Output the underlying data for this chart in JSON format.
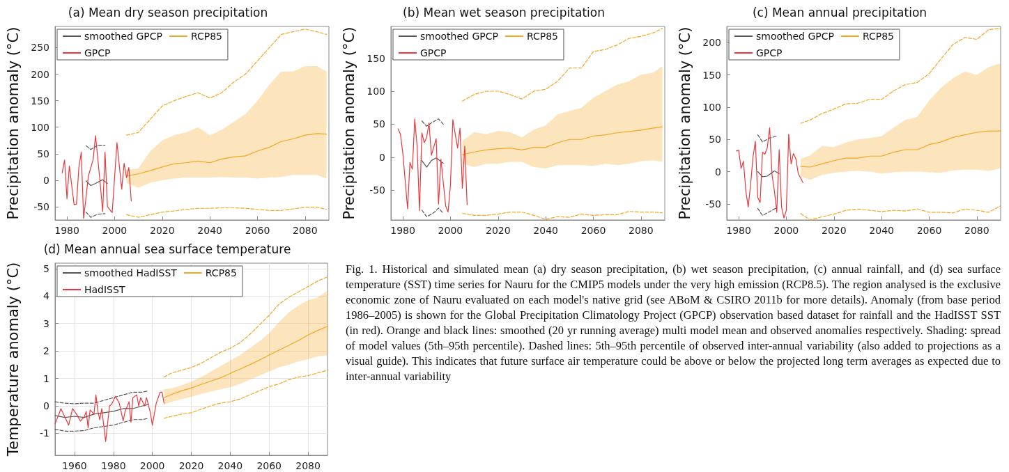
{
  "chart_data": [
    {
      "type": "line",
      "title": "(a) Mean dry season precipitation",
      "ylabel": "Precipitation anomaly (°C)",
      "xlim": [
        1975,
        2090
      ],
      "xticks": [
        1980,
        2000,
        2020,
        2040,
        2060,
        2080
      ],
      "ylim": [
        -75,
        290
      ],
      "yticks": [
        -50,
        0,
        50,
        100,
        150,
        200,
        250
      ],
      "grid": false,
      "legend": "top left",
      "series": [
        {
          "name": "smoothed GPCP",
          "color": "#555555",
          "x": [
            1988,
            1990,
            1992,
            1995,
            1997
          ],
          "values": [
            -1,
            -10,
            -6,
            1,
            -6
          ]
        },
        {
          "name": "RCP85",
          "color": "#f5a623",
          "x": [
            2005,
            2010,
            2015,
            2020,
            2025,
            2030,
            2035,
            2040,
            2045,
            2050,
            2055,
            2060,
            2065,
            2070,
            2075,
            2080,
            2085,
            2089
          ],
          "values": [
            8,
            12,
            18,
            25,
            31,
            33,
            36,
            33,
            40,
            44,
            46,
            55,
            62,
            73,
            78,
            85,
            88,
            87
          ],
          "lower": [
            -5,
            -14,
            -5,
            0,
            3,
            5,
            5,
            5,
            6,
            5,
            5,
            3,
            5,
            6,
            10,
            10,
            10,
            3
          ],
          "upper": [
            20,
            22,
            55,
            75,
            85,
            90,
            100,
            85,
            95,
            110,
            125,
            150,
            180,
            205,
            205,
            215,
            215,
            205
          ]
        },
        {
          "name": "GPCP",
          "color": "#e8383d",
          "x": [
            1978,
            1979,
            1980,
            1981,
            1983,
            1984,
            1985,
            1986,
            1987,
            1989,
            1991,
            1992,
            1994,
            1995,
            1996,
            1997,
            1999,
            2001,
            2003,
            2004,
            2005,
            2006,
            2007
          ],
          "values": [
            14,
            38,
            -35,
            27,
            -46,
            -45,
            24,
            53,
            -72,
            8,
            39,
            84,
            -8,
            -59,
            53,
            -50,
            -61,
            71,
            -17,
            32,
            5,
            24,
            -39
          ]
        },
        {
          "color": "#555555",
          "line_style": "dashed",
          "x": [
            1988,
            1990,
            1993,
            1996
          ],
          "values": [
            65,
            58,
            66,
            66
          ]
        },
        {
          "color": "#555555",
          "line_style": "dashed",
          "x": [
            1988,
            1990,
            1993,
            1996
          ],
          "values": [
            -60,
            -70,
            -64,
            -63
          ]
        },
        {
          "color": "#f5a623",
          "line_style": "dashed",
          "x": [
            2005,
            2010,
            2015,
            2020,
            2025,
            2030,
            2035,
            2040,
            2045,
            2050,
            2055,
            2060,
            2065,
            2070,
            2075,
            2080,
            2085,
            2089
          ],
          "values": [
            85,
            90,
            115,
            140,
            150,
            158,
            165,
            155,
            165,
            185,
            200,
            225,
            250,
            275,
            280,
            285,
            280,
            275
          ]
        },
        {
          "color": "#f5a623",
          "line_style": "dashed",
          "x": [
            2005,
            2010,
            2015,
            2020,
            2025,
            2030,
            2035,
            2040,
            2045,
            2050,
            2055,
            2060,
            2065,
            2070,
            2075,
            2080,
            2085,
            2089
          ],
          "values": [
            -65,
            -70,
            -65,
            -60,
            -58,
            -55,
            -53,
            -53,
            -52,
            -52,
            -53,
            -55,
            -57,
            -57,
            -54,
            -51,
            -51,
            -55
          ]
        }
      ]
    },
    {
      "type": "line",
      "title": "(b) Mean wet season precipitation",
      "ylabel": "Precipitation anomaly (°C)",
      "xlim": [
        1975,
        2090
      ],
      "xticks": [
        1980,
        2000,
        2020,
        2040,
        2060,
        2080
      ],
      "ylim": [
        -95,
        198
      ],
      "yticks": [
        -50,
        0,
        50,
        100,
        150
      ],
      "grid": false,
      "legend": "top left",
      "series": [
        {
          "name": "smoothed GPCP",
          "color": "#555555",
          "x": [
            1988,
            1990,
            1992,
            1994,
            1997
          ],
          "values": [
            -5,
            -15,
            -5,
            -1,
            -9
          ]
        },
        {
          "name": "RCP85",
          "color": "#f5a623",
          "x": [
            2005,
            2010,
            2015,
            2020,
            2025,
            2030,
            2035,
            2040,
            2045,
            2050,
            2055,
            2060,
            2065,
            2070,
            2075,
            2080,
            2085,
            2089
          ],
          "values": [
            4,
            8,
            11,
            13,
            14,
            11,
            15,
            15,
            22,
            27,
            27,
            32,
            34,
            37,
            39,
            41,
            44,
            46
          ],
          "lower": [
            -10,
            -15,
            -10,
            -10,
            -7,
            -7,
            -15,
            -17,
            -12,
            -12,
            -12,
            -13,
            -10,
            -12,
            -10,
            -6,
            -5,
            -7
          ],
          "upper": [
            25,
            38,
            35,
            40,
            38,
            30,
            42,
            48,
            65,
            70,
            75,
            90,
            100,
            110,
            115,
            125,
            128,
            138
          ]
        },
        {
          "name": "GPCP",
          "color": "#e8383d",
          "x": [
            1978,
            1979,
            1980,
            1982,
            1983,
            1984,
            1985,
            1986,
            1987,
            1988,
            1989,
            1990,
            1991,
            1992,
            1994,
            1995,
            1996,
            1998,
            1999,
            2000,
            2001,
            2003,
            2004,
            2005,
            2006,
            2007
          ],
          "values": [
            43,
            35,
            6,
            -78,
            -8,
            -18,
            58,
            17,
            -81,
            37,
            22,
            30,
            52,
            3,
            28,
            -71,
            -3,
            -74,
            -83,
            -42,
            57,
            14,
            44,
            -47,
            17,
            -72
          ]
        },
        {
          "color": "#555555",
          "line_style": "dashed",
          "x": [
            1988,
            1990,
            1992,
            1995,
            1997
          ],
          "values": [
            55,
            47,
            52,
            58,
            50
          ]
        },
        {
          "color": "#555555",
          "line_style": "dashed",
          "x": [
            1988,
            1990,
            1993,
            1995,
            1997
          ],
          "values": [
            -80,
            -90,
            -84,
            -77,
            -85
          ]
        },
        {
          "color": "#f5a623",
          "line_style": "dashed",
          "x": [
            2005,
            2010,
            2015,
            2020,
            2025,
            2030,
            2035,
            2040,
            2045,
            2050,
            2055,
            2060,
            2065,
            2070,
            2075,
            2080,
            2085,
            2089
          ],
          "values": [
            85,
            95,
            100,
            100,
            95,
            88,
            100,
            103,
            115,
            135,
            135,
            160,
            163,
            170,
            180,
            183,
            188,
            195
          ]
        },
        {
          "color": "#f5a623",
          "line_style": "dashed",
          "x": [
            2005,
            2010,
            2015,
            2020,
            2025,
            2030,
            2035,
            2040,
            2045,
            2050,
            2055,
            2060,
            2065,
            2070,
            2075,
            2080,
            2085,
            2089
          ],
          "values": [
            -85,
            -88,
            -88,
            -86,
            -83,
            -83,
            -88,
            -94,
            -90,
            -91,
            -86,
            -88,
            -87,
            -87,
            -82,
            -83,
            -83,
            -84
          ]
        }
      ]
    },
    {
      "type": "line",
      "title": "(c) Mean annual precipitation",
      "ylabel": "Precipitation anomaly (°C)",
      "xlim": [
        1975,
        2090
      ],
      "xticks": [
        1980,
        2000,
        2020,
        2040,
        2060,
        2080
      ],
      "ylim": [
        -75,
        225
      ],
      "yticks": [
        -50,
        0,
        50,
        100,
        150,
        200
      ],
      "grid": false,
      "legend": "top left",
      "series": [
        {
          "name": "smoothed GPCP",
          "color": "#555555",
          "x": [
            1988,
            1990,
            1992,
            1995,
            1997
          ],
          "values": [
            0,
            -8,
            -7,
            1,
            -3
          ]
        },
        {
          "name": "RCP85",
          "color": "#f5a623",
          "x": [
            2006,
            2010,
            2015,
            2020,
            2025,
            2030,
            2035,
            2040,
            2045,
            2050,
            2055,
            2060,
            2065,
            2070,
            2075,
            2080,
            2085,
            2090
          ],
          "values": [
            8,
            7,
            12,
            17,
            21,
            21,
            24,
            24,
            30,
            34,
            34,
            42,
            46,
            53,
            57,
            61,
            63,
            63
          ],
          "lower": [
            -7,
            -13,
            -5,
            -2,
            0,
            1,
            0,
            -3,
            -1,
            0,
            0,
            -1,
            -2,
            2,
            3,
            3,
            1,
            5
          ],
          "upper": [
            20,
            25,
            40,
            38,
            45,
            50,
            52,
            55,
            68,
            80,
            85,
            110,
            130,
            145,
            155,
            150,
            162,
            168
          ]
        },
        {
          "name": "GPCP",
          "color": "#e8383d",
          "x": [
            1979,
            1980,
            1981,
            1982,
            1983,
            1984,
            1985,
            1986,
            1987,
            1988,
            1989,
            1990,
            1991,
            1992,
            1993,
            1994,
            1995,
            1996,
            1997,
            1998,
            1999,
            2000,
            2001,
            2002,
            2003,
            2004,
            2005,
            2006,
            2007
          ],
          "values": [
            32,
            33,
            5,
            16,
            -30,
            -55,
            -20,
            22,
            47,
            -40,
            -48,
            30,
            27,
            37,
            68,
            -5,
            -30,
            -63,
            34,
            -55,
            -72,
            -60,
            58,
            12,
            28,
            20,
            -3,
            -10,
            -17
          ]
        },
        {
          "color": "#555555",
          "line_style": "dashed",
          "x": [
            1988,
            1990,
            1993,
            1996
          ],
          "values": [
            57,
            46,
            52,
            55
          ]
        },
        {
          "color": "#555555",
          "line_style": "dashed",
          "x": [
            1988,
            1990,
            1993,
            1996
          ],
          "values": [
            -57,
            -68,
            -62,
            -56
          ]
        },
        {
          "color": "#f5a623",
          "line_style": "dashed",
          "x": [
            2006,
            2010,
            2015,
            2020,
            2025,
            2030,
            2035,
            2040,
            2045,
            2050,
            2055,
            2060,
            2065,
            2070,
            2075,
            2080,
            2085,
            2090
          ],
          "values": [
            75,
            80,
            90,
            97,
            105,
            106,
            112,
            112,
            125,
            135,
            138,
            152,
            175,
            197,
            208,
            205,
            220,
            222
          ]
        },
        {
          "color": "#f5a623",
          "line_style": "dashed",
          "x": [
            2006,
            2010,
            2015,
            2020,
            2025,
            2030,
            2035,
            2040,
            2045,
            2050,
            2055,
            2060,
            2065,
            2070,
            2075,
            2080,
            2085,
            2090
          ],
          "values": [
            -65,
            -75,
            -70,
            -66,
            -60,
            -58,
            -60,
            -62,
            -60,
            -61,
            -58,
            -63,
            -63,
            -64,
            -58,
            -60,
            -63,
            -53
          ]
        }
      ]
    },
    {
      "type": "line",
      "title": "(d) Mean annual sea surface temperature",
      "ylabel": "Temperature anomaly (°C)",
      "xlim": [
        1950,
        2090
      ],
      "xticks": [
        1960,
        1980,
        2000,
        2020,
        2040,
        2060,
        2080
      ],
      "ylim": [
        -1.8,
        5.2
      ],
      "yticks": [
        -1,
        0,
        1,
        2,
        3,
        4,
        5
      ],
      "grid": true,
      "legend": "top left",
      "annotations": [
        "Fig. 1. Historical and simulated mean (a) dry season precipitation, (b) wet season precipitation, (c) annual rainfall, and (d) sea surface temperature (SST) time series for Nauru for the CMIP5 models under the very high emission (RCP8.5). The region analysed is the exclusive economic zone of Nauru evaluated on each model's native grid (see ABoM & CSIRO 2011b for more details). Anomaly (from base period 1986–2005) is shown for the Global Precipitation Climatology Project (GPCP) observation based dataset for rainfall and the HadISST SST (in red). Orange and black lines: smoothed (20 yr running average) multi model mean and observed anomalies respectively. Shading: spread of model values (5th–95th percentile). Dashed lines: 5th–95th percentile of observed inter-annual variability (also added to projections as a visual guide). This indicates that future surface air temperature could be above or below the projected long term averages as expected due to inter-annual variability"
      ],
      "series": [
        {
          "name": "smoothed HadISST",
          "color": "#555555",
          "x": [
            1950,
            1955,
            1960,
            1965,
            1970,
            1975,
            1980,
            1985,
            1990,
            1995,
            1998
          ],
          "values": [
            -0.35,
            -0.42,
            -0.38,
            -0.42,
            -0.3,
            -0.25,
            -0.2,
            -0.1,
            -0.1,
            0.0,
            0.05
          ]
        },
        {
          "name": "RCP85",
          "color": "#f5a623",
          "x": [
            2006,
            2010,
            2015,
            2020,
            2025,
            2030,
            2035,
            2040,
            2045,
            2050,
            2055,
            2060,
            2065,
            2070,
            2075,
            2080,
            2085,
            2090
          ],
          "values": [
            0.3,
            0.42,
            0.55,
            0.65,
            0.78,
            0.9,
            1.02,
            1.18,
            1.34,
            1.5,
            1.67,
            1.85,
            2.03,
            2.2,
            2.38,
            2.58,
            2.75,
            2.9
          ],
          "lower": [
            0.05,
            0.15,
            0.25,
            0.33,
            0.43,
            0.52,
            0.6,
            0.68,
            0.8,
            0.95,
            1.1,
            1.25,
            1.4,
            1.5,
            1.62,
            1.7,
            1.8,
            1.85
          ],
          "upper": [
            0.6,
            0.65,
            0.75,
            0.88,
            1.05,
            1.25,
            1.45,
            1.65,
            1.85,
            2.1,
            2.35,
            2.65,
            3.05,
            3.4,
            3.65,
            3.85,
            3.95,
            4.2
          ]
        },
        {
          "name": "HadISST",
          "color": "#e8383d",
          "x": [
            1950,
            1952,
            1953,
            1955,
            1957,
            1959,
            1961,
            1963,
            1965,
            1966,
            1967,
            1968,
            1970,
            1971,
            1972,
            1973,
            1974,
            1976,
            1978,
            1979,
            1981,
            1983,
            1985,
            1986,
            1988,
            1989,
            1990,
            1992,
            1993,
            1994,
            1996,
            1997,
            1999,
            2000,
            2002,
            2004,
            2005,
            2006
          ],
          "values": [
            -0.65,
            -0.3,
            -0.1,
            -0.4,
            -0.7,
            -0.1,
            -0.3,
            -0.55,
            -0.4,
            -0.2,
            -0.8,
            -0.15,
            -0.3,
            0.4,
            -0.2,
            -0.5,
            -0.1,
            -1.3,
            0.0,
            0.05,
            0.35,
            0.1,
            -0.55,
            -0.2,
            0.15,
            -0.6,
            0.3,
            0.4,
            0.0,
            0.3,
            0.0,
            0.3,
            -0.25,
            -0.7,
            0.1,
            0.5,
            0.5,
            0.1
          ]
        },
        {
          "color": "#555555",
          "line_style": "dashed",
          "x": [
            1950,
            1955,
            1960,
            1965,
            1970,
            1975,
            1980,
            1985,
            1990,
            1995,
            1998
          ],
          "values": [
            0.15,
            0.1,
            0.08,
            0.1,
            0.1,
            0.2,
            0.3,
            0.4,
            0.5,
            0.5,
            0.55
          ]
        },
        {
          "color": "#555555",
          "line_style": "dashed",
          "x": [
            1950,
            1955,
            1960,
            1965,
            1970,
            1975,
            1980,
            1985,
            1990,
            1995,
            1998
          ],
          "values": [
            -0.85,
            -0.92,
            -0.92,
            -0.9,
            -0.8,
            -0.75,
            -0.7,
            -0.6,
            -0.5,
            -0.5,
            -0.45
          ]
        },
        {
          "color": "#f5a623",
          "line_style": "dashed",
          "x": [
            2006,
            2010,
            2015,
            2020,
            2025,
            2030,
            2035,
            2040,
            2045,
            2050,
            2055,
            2060,
            2065,
            2070,
            2075,
            2080,
            2085,
            2090
          ],
          "values": [
            1.05,
            1.2,
            1.3,
            1.4,
            1.55,
            1.75,
            1.95,
            2.1,
            2.3,
            2.6,
            2.95,
            3.3,
            3.7,
            3.95,
            4.15,
            4.35,
            4.55,
            4.7
          ]
        },
        {
          "color": "#f5a623",
          "line_style": "dashed",
          "x": [
            2006,
            2010,
            2015,
            2020,
            2025,
            2030,
            2035,
            2040,
            2045,
            2050,
            2055,
            2060,
            2065,
            2070,
            2075,
            2080,
            2085,
            2090
          ],
          "values": [
            -0.45,
            -0.38,
            -0.3,
            -0.25,
            -0.12,
            0.0,
            0.1,
            0.15,
            0.25,
            0.4,
            0.55,
            0.7,
            0.8,
            0.95,
            1.05,
            1.1,
            1.2,
            1.3
          ]
        }
      ]
    }
  ]
}
